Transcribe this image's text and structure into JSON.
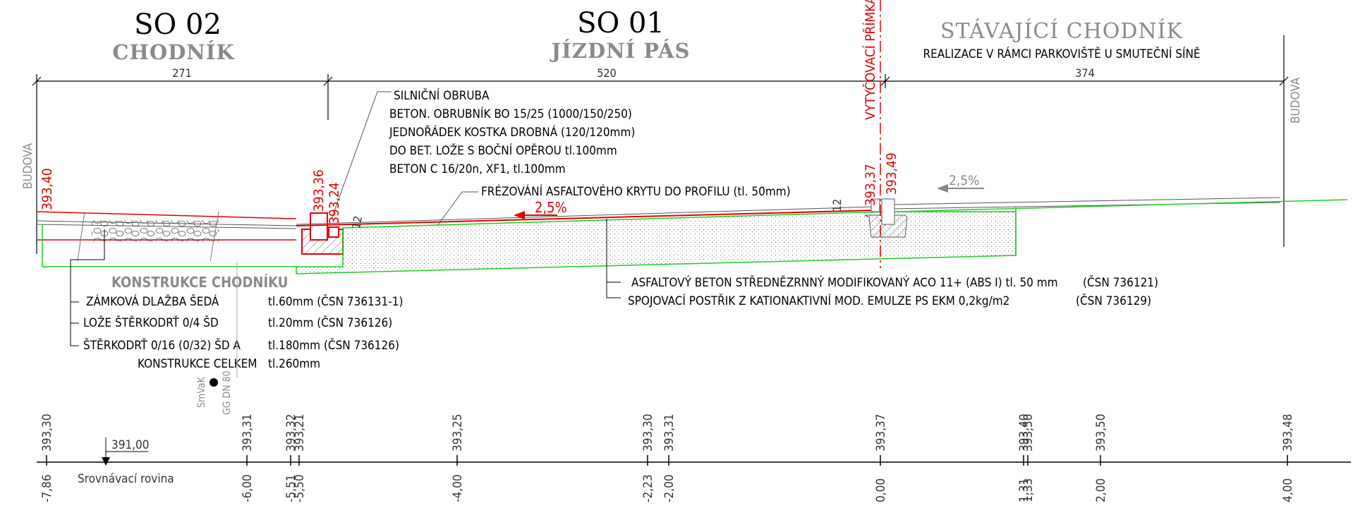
{
  "headers": {
    "so02_title": "SO 02",
    "so02_sub": "CHODNÍK",
    "so01_title": "SO 01",
    "so01_sub": "JÍZDNÍ PÁS",
    "existing_title": "STÁVAJÍCÍ CHODNÍK",
    "existing_sub": "REALIZACE V RÁMCI  PARKOVIŠTĚ U SMUTEČNÍ SÍNĚ"
  },
  "dimensions": {
    "d1": "271",
    "d2": "520",
    "d3": "374",
    "d4": "12",
    "d5": "12"
  },
  "building_left": "BUDOVA",
  "building_right": "BUDOVA",
  "curb_note": [
    "SILNIČNÍ OBRUBA",
    "BETON. OBRUBNÍK BO 15/25 (1000/150/250)",
    "JEDNOŘÁDEK KOSTKA  DROBNÁ (120/120mm)",
    "DO BET. LOŽE S BOČNÍ OPĚROU tl.100mm",
    "BETON C 16/20n, XF1, tl.100mm"
  ],
  "milling_note": "FRÉZOVÁNÍ ASFALTOVÉHO KRYTU  DO  PROFILU (tl. 50mm)",
  "slopes": {
    "road": "2,5%",
    "existing": "2,5%"
  },
  "red_levels": {
    "l1": "393,40",
    "l2": "393,36",
    "l3": "393,24",
    "l4": "393,37",
    "l5": "393,49"
  },
  "setout_line": "VYTYČOVACÍ PŘÍMKA - NIVELETA",
  "sidewalk_layers": {
    "title": "KONSTRUKCE CHODNÍKU",
    "rows": [
      {
        "name": "ZÁMKOVÁ DLAŽBA ŠEDÁ",
        "thickness": "tl.60mm (ČSN 736131-1)"
      },
      {
        "name": "LOŽE ŠTĚRKODRŤ 0/4   ŠD",
        "thickness": "tl.20mm  (ČSN 736126)"
      },
      {
        "name": "ŠTĚRKODRŤ 0/16 (0/32)  ŠD A",
        "thickness": "tl.180mm (ČSN 736126)"
      }
    ],
    "total_label": "KONSTRUKCE CELKEM",
    "total_value": "tl.260mm"
  },
  "road_layers": [
    {
      "name": "ASFALTOVÝ BETON STŘEDNĚZRNNÝ  MODIFIKOVANÝ ACO 11+  (ABS I)  tl. 50 mm",
      "norm": "(ČSN 736121)"
    },
    {
      "name": "SPOJOVACÍ POSTŘIK Z KATIONAKTIVNÍ MOD. EMULZE  PS EKM 0,2kg/m2",
      "norm": "(ČSN 736129)"
    }
  ],
  "utility": {
    "owner": "SmVaK",
    "pipe": "GG DN 80"
  },
  "datum": {
    "level": "391,00",
    "label": "Srovnávací rovina"
  },
  "stations": [
    {
      "level": "393,30",
      "offset": "-7,86"
    },
    {
      "level": "393,31",
      "offset": "-6,00"
    },
    {
      "level": "393,32",
      "offset": "-5,51"
    },
    {
      "level": "393,21",
      "offset": "-5,50"
    },
    {
      "level": "393,25",
      "offset": "-4,00"
    },
    {
      "level": "393,30",
      "offset": "-2,23"
    },
    {
      "level": "393,31",
      "offset": "-2,00"
    },
    {
      "level": "393,37",
      "offset": "0,00"
    },
    {
      "level": "393,40",
      "offset": "1,31"
    },
    {
      "level": "393,50",
      "offset": "1,33"
    },
    {
      "level": "393,50",
      "offset": "2,00"
    },
    {
      "level": "393,48",
      "offset": "4,00"
    }
  ]
}
